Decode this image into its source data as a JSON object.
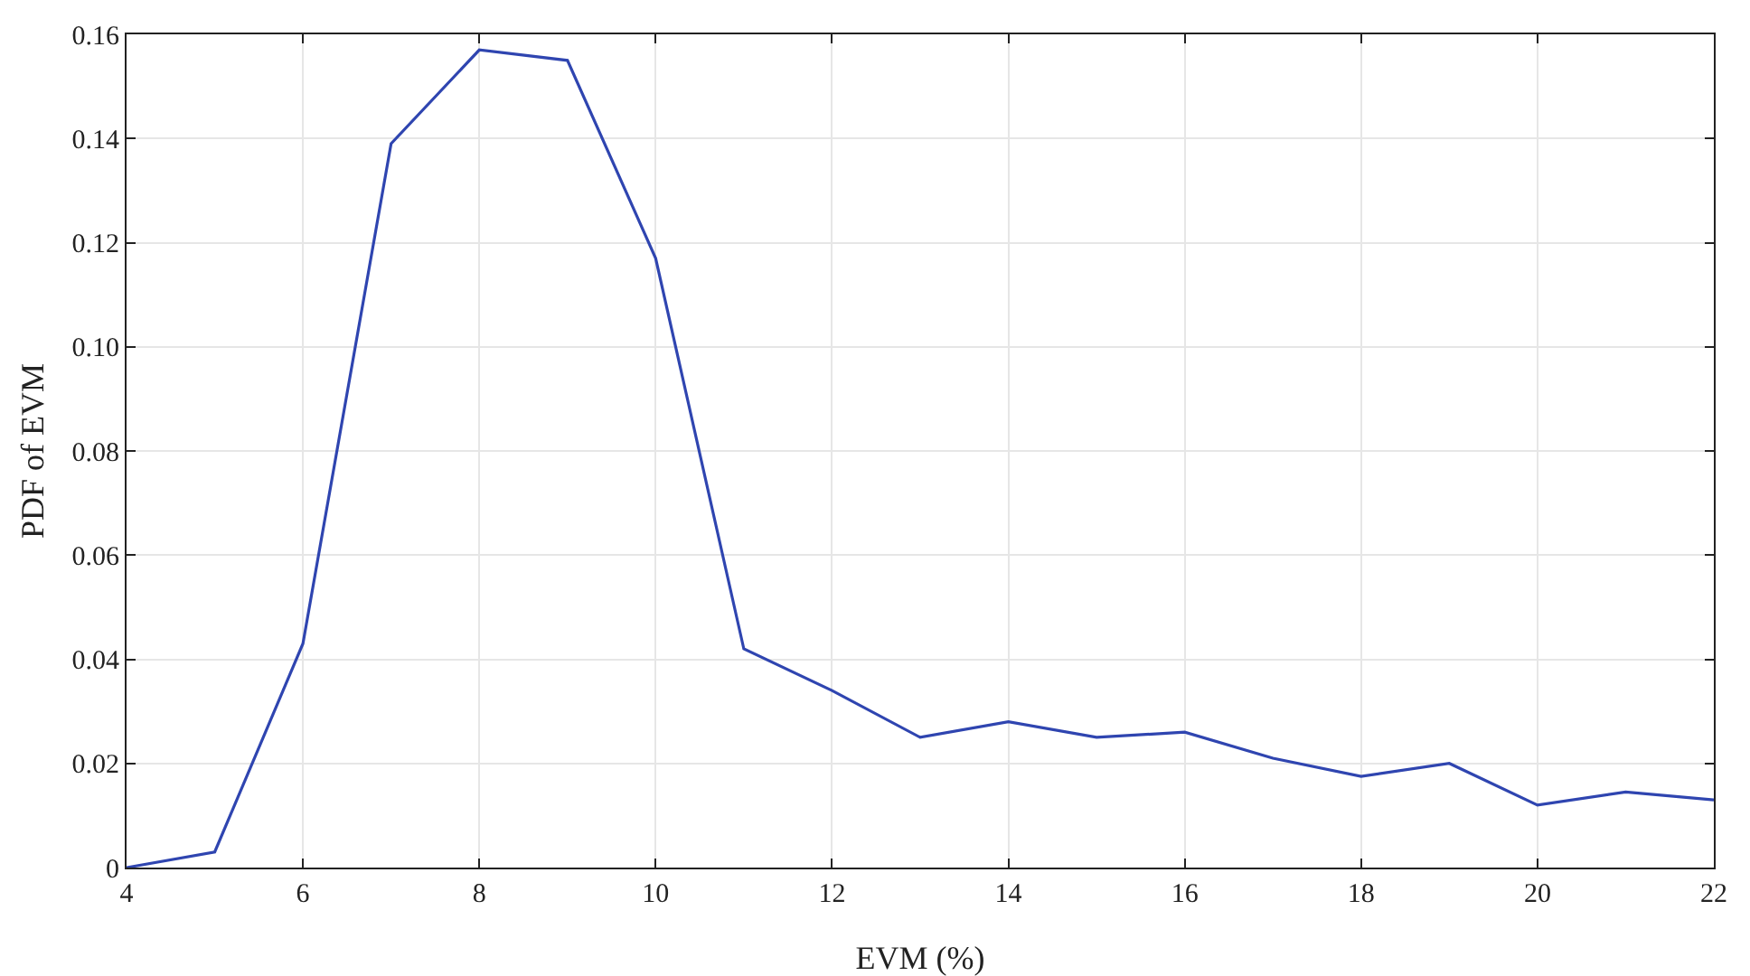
{
  "chart_data": {
    "type": "line",
    "xlabel": "EVM (%)",
    "ylabel": "PDF of EVM",
    "x": [
      4,
      5,
      6,
      7,
      8,
      9,
      10,
      11,
      12,
      13,
      14,
      15,
      16,
      17,
      18,
      19,
      20,
      21,
      22
    ],
    "series": [
      {
        "color": "#2f45b0",
        "values": [
          0,
          0.003,
          0.043,
          0.139,
          0.157,
          0.155,
          0.117,
          0.042,
          0.034,
          0.025,
          0.028,
          0.025,
          0.026,
          0.021,
          0.0175,
          0.02,
          0.012,
          0.0145,
          0.013
        ]
      }
    ],
    "xlim": [
      4,
      22
    ],
    "xticks": [
      4,
      6,
      8,
      10,
      12,
      14,
      16,
      18,
      20,
      22
    ],
    "ylim": [
      0,
      0.16
    ],
    "yticks": [
      0,
      0.02,
      0.04,
      0.06,
      0.08,
      {
        "value": 0.1,
        "label": "0.10"
      },
      {
        "value": 0.12,
        "label": "0.12"
      },
      {
        "value": 0.14,
        "label": "0.14"
      },
      {
        "value": 0.16,
        "label": "0.16"
      }
    ],
    "grid": true,
    "marker": "none",
    "line_style": "solid"
  }
}
